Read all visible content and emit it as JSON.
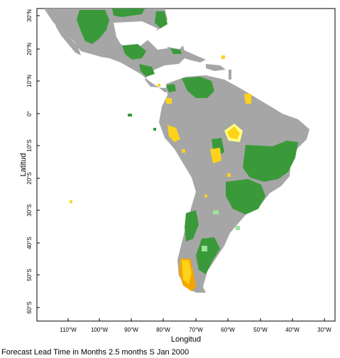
{
  "map": {
    "x_label": "Longitud",
    "y_label": "Latitud",
    "caption": "Forecast Lead Time in Months 2.5 months S Jan 2000",
    "lon_ticks": [
      "110°W",
      "100°W",
      "90°W",
      "80°W",
      "70°W",
      "60°W",
      "50°W",
      "40°W",
      "30°W"
    ],
    "lat_ticks": [
      "30°N",
      "20°N",
      "10°N",
      "0°",
      "10°S",
      "20°S",
      "30°S",
      "40°S",
      "50°S",
      "60°S"
    ],
    "colors": {
      "land": "#a6a6a6",
      "forecast_green": "#3a9a3a",
      "forecast_dark_green": "#1f7a2a",
      "forecast_light_green": "#9be39b",
      "forecast_yellow": "#ffd21a",
      "forecast_pale_yellow": "#ffff80",
      "forecast_orange": "#f5a400"
    }
  }
}
